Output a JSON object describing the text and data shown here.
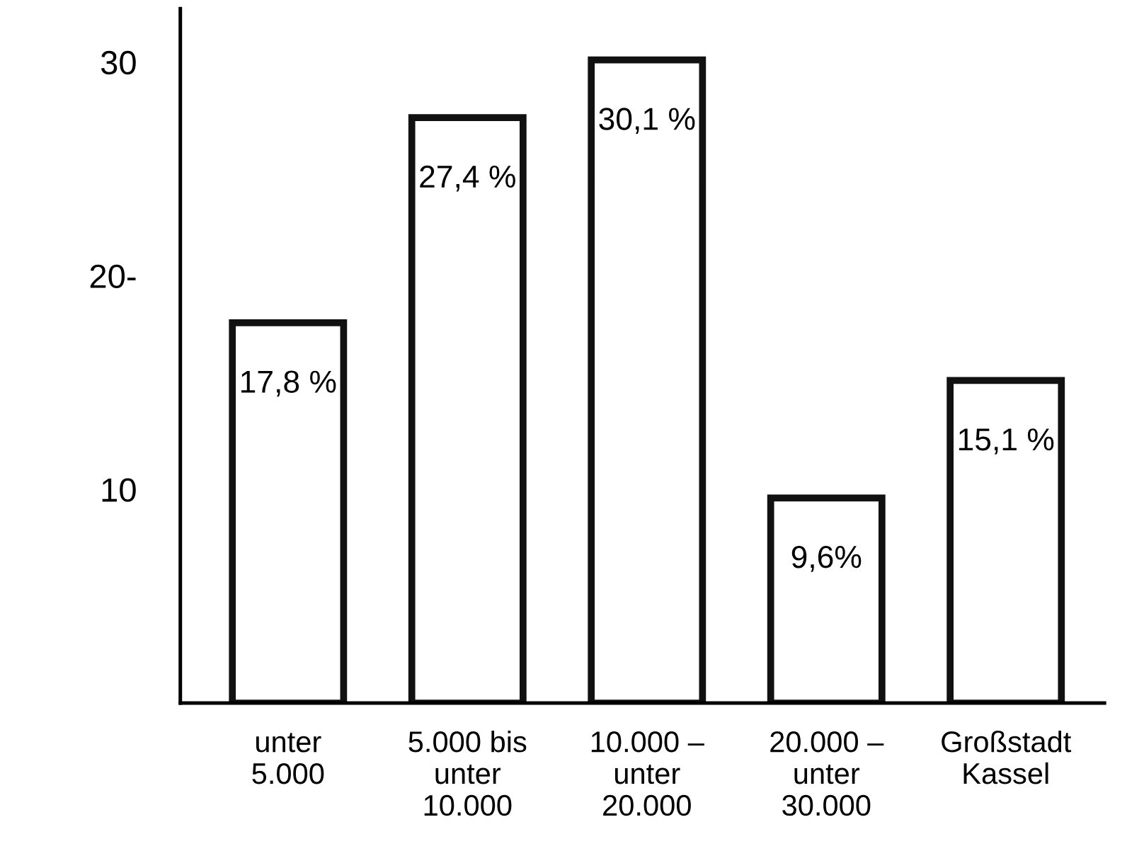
{
  "chart_data": {
    "type": "bar",
    "categories": [
      "unter\n5.000",
      "5.000 bis\nunter\n10.000",
      "10.000 –\nunter\n20.000",
      "20.000 –\nunter\n30.000",
      "Großstadt\nKassel"
    ],
    "values": [
      17.8,
      27.4,
      30.1,
      9.6,
      15.1
    ],
    "value_labels": [
      "17,8 %",
      "27,4 %",
      "30,1 %",
      "9,6%",
      "15,1 %"
    ],
    "color": "#ffffff",
    "ylim": [
      0,
      32.5
    ],
    "yticks": [
      10,
      {
        "value": 20,
        "label": "20-"
      },
      30
    ],
    "grid": false
  }
}
